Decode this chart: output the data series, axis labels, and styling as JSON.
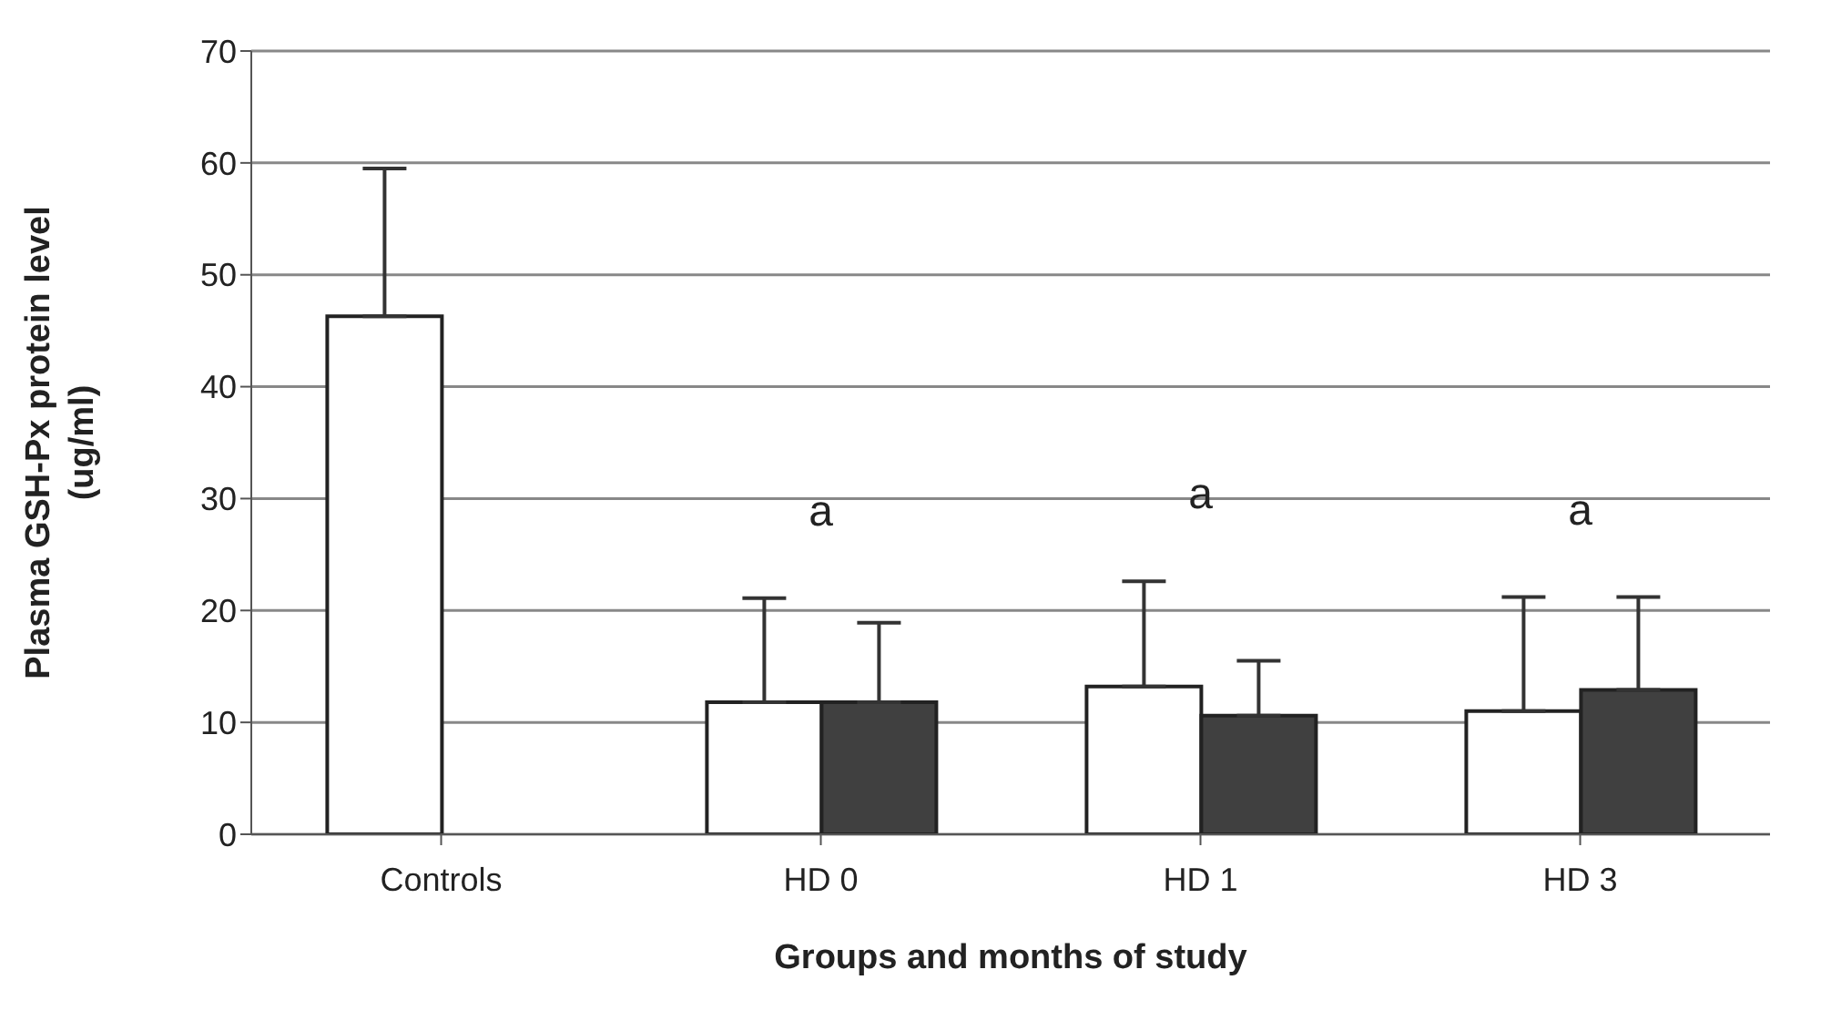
{
  "chart_data": {
    "type": "bar",
    "xlabel": "Groups and months of study",
    "ylabel": "Plasma GSH-Px protein level\n(ug/ml)",
    "categories": [
      "Controls",
      "HD 0",
      "HD 1",
      "HD 3"
    ],
    "series": [
      {
        "color": "#ffffff",
        "values": [
          46.3,
          11.8,
          13.2,
          11.0
        ],
        "errors": [
          [
            46.3,
            59.5
          ],
          [
            11.8,
            21.1
          ],
          [
            13.2,
            22.6
          ],
          [
            11.0,
            21.2
          ]
        ]
      },
      {
        "color": "#404040",
        "values": [
          null,
          11.8,
          10.6,
          12.9
        ],
        "errors": [
          null,
          [
            11.8,
            18.9
          ],
          [
            10.6,
            15.5
          ],
          [
            12.9,
            21.2
          ]
        ]
      }
    ],
    "ylim": [
      0,
      70
    ],
    "yticks": [
      0,
      10,
      20,
      30,
      40,
      50,
      60,
      70
    ],
    "grid": "y",
    "legend": false,
    "annotations": [
      "a",
      "a",
      "a"
    ]
  }
}
